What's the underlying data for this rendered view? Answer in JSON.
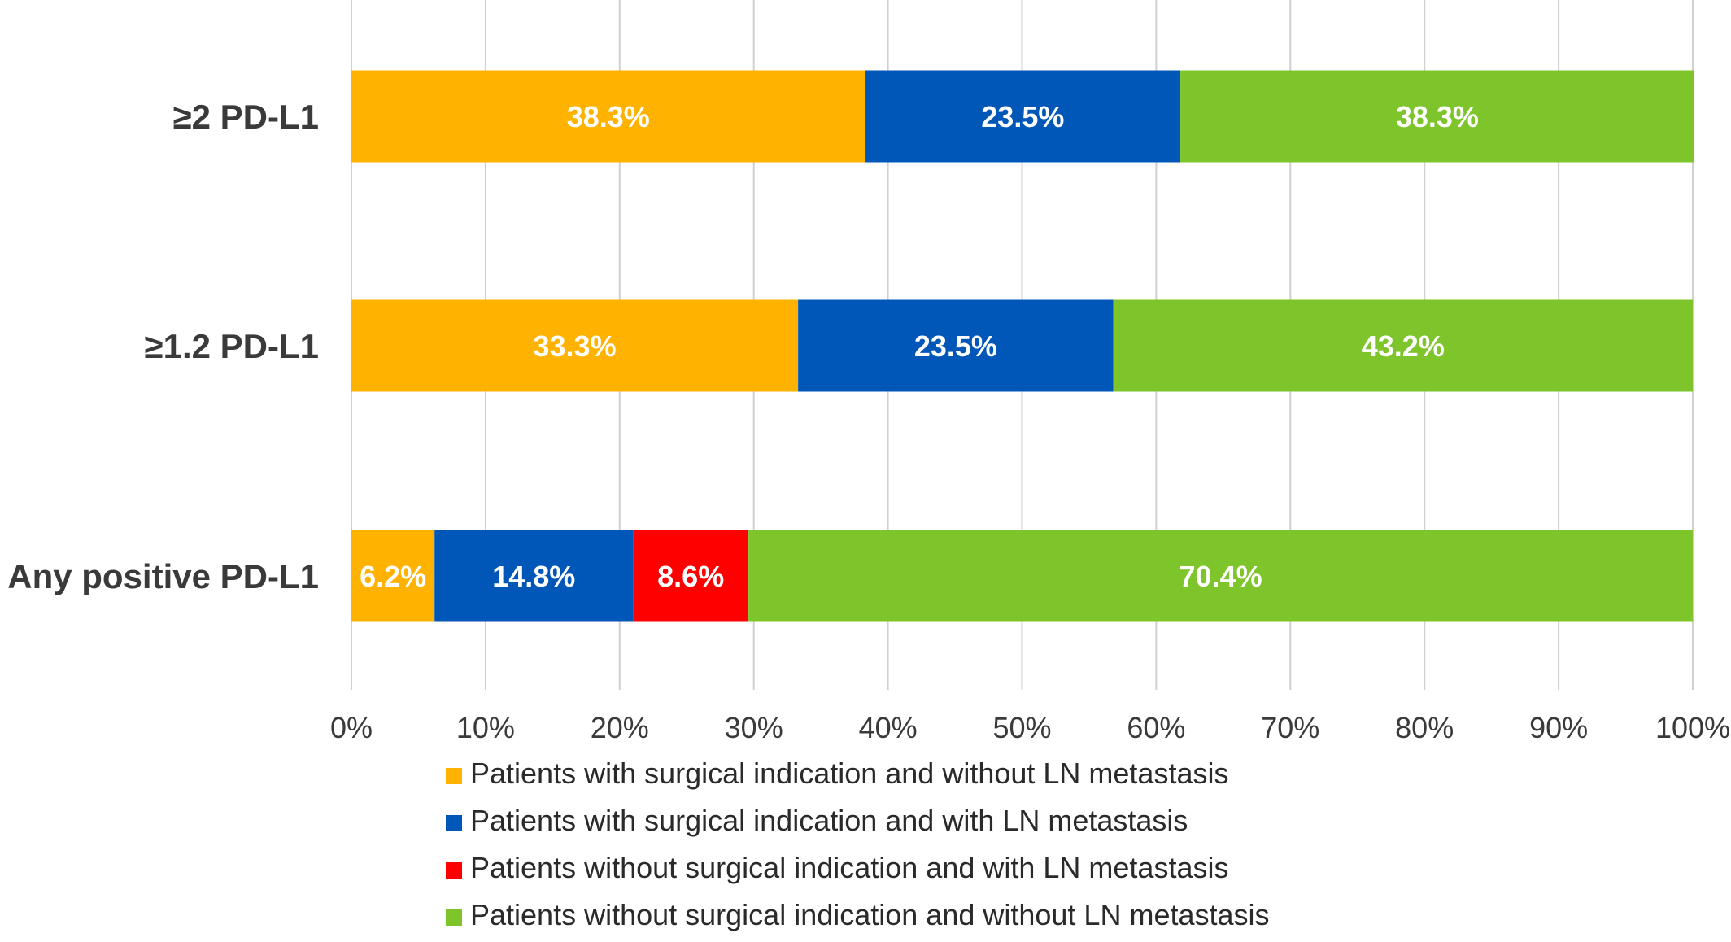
{
  "chart_data": {
    "type": "bar",
    "orientation": "horizontal",
    "stacked": true,
    "categories": [
      "≥2 PD-L1",
      "≥1.2 PD-L1",
      "Any positive PD-L1"
    ],
    "series": [
      {
        "name": "Patients with surgical indication and without LN metastasis",
        "color": "#FFB300",
        "values": [
          38.3,
          33.3,
          6.2
        ],
        "labels": [
          "38.3%",
          "33.3%",
          "6.2%"
        ]
      },
      {
        "name": "Patients with surgical indication and with LN metastasis",
        "color": "#0057B8",
        "values": [
          23.5,
          23.5,
          14.8
        ],
        "labels": [
          "23.5%",
          "23.5%",
          "14.8%"
        ]
      },
      {
        "name": "Patients without surgical indication and with LN metastasis",
        "color": "#FF0000",
        "values": [
          0,
          0,
          8.6
        ],
        "labels": [
          "",
          "",
          "8.6%"
        ]
      },
      {
        "name": "Patients without surgical indication and without LN metastasis",
        "color": "#7DC52A",
        "values": [
          38.3,
          43.2,
          70.4
        ],
        "labels": [
          "38.3%",
          "43.2%",
          "70.4%"
        ]
      }
    ],
    "xlim": [
      0,
      100
    ],
    "x_ticks": [
      "0%",
      "10%",
      "20%",
      "30%",
      "40%",
      "50%",
      "60%",
      "70%",
      "80%",
      "90%",
      "100%"
    ],
    "title": "",
    "xlabel": "",
    "ylabel": "",
    "grid": true,
    "gridline_color": "#D0D0D0",
    "legend_position": "bottom"
  }
}
